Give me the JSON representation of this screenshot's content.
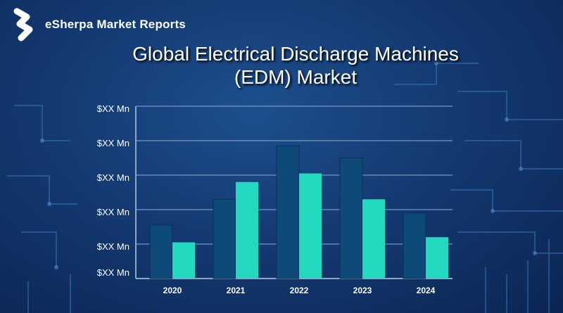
{
  "brand": {
    "name": "eSherpa Market Reports",
    "icon": "esherpa-logo-icon"
  },
  "colors": {
    "background": "#143a72",
    "series_dark": "#0e4a78",
    "series_light": "#23d9c0",
    "grid": "#8ea7c9"
  },
  "chart_data": {
    "type": "bar",
    "title": "Global Electrical Discharge Machines (EDM) Market",
    "title_lines": [
      "Global Electrical Discharge Machines",
      "(EDM) Market"
    ],
    "xlabel": "",
    "ylabel": "",
    "categories": [
      "2020",
      "2021",
      "2022",
      "2023",
      "2024"
    ],
    "y_tick_labels": [
      "$XX Mn",
      "$XX Mn",
      "$XX Mn",
      "$XX Mn",
      "$XX Mn",
      "$XX Mn"
    ],
    "ylim": [
      0,
      100
    ],
    "grid": true,
    "legend": "none",
    "series": [
      {
        "values": [
          31,
          46,
          77,
          70,
          38
        ]
      },
      {
        "values": [
          21,
          56,
          61,
          46,
          24
        ]
      }
    ]
  }
}
